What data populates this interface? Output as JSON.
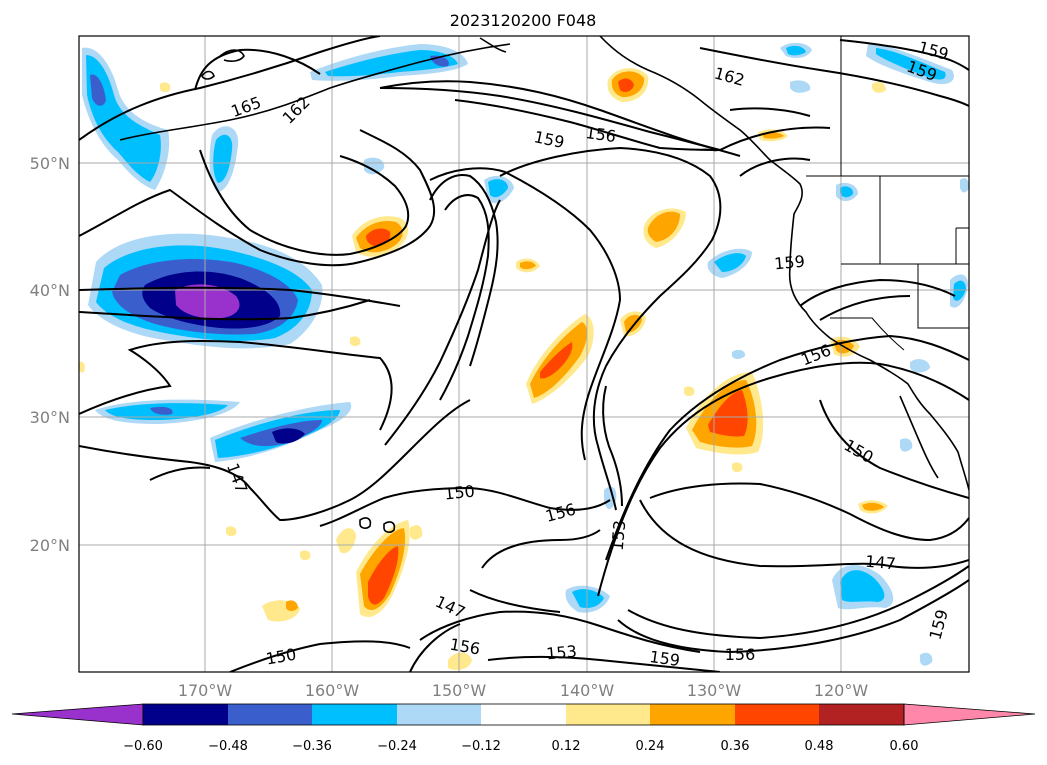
{
  "title": "2023120200 F048",
  "lat_labels": [
    "50°N",
    "40°N",
    "30°N",
    "20°N"
  ],
  "lon_labels": [
    "170°W",
    "160°W",
    "150°W",
    "140°W",
    "130°W",
    "120°W"
  ],
  "contour_labels": [
    "165",
    "162",
    "159",
    "156",
    "159",
    "162",
    "159",
    "159",
    "156",
    "150",
    "147",
    "150",
    "156",
    "153",
    "147",
    "156",
    "153",
    "159",
    "156",
    "147",
    "159",
    "150"
  ],
  "colorbar": {
    "tick_labels": [
      "−0.60",
      "−0.48",
      "−0.36",
      "−0.24",
      "−0.12",
      "0.12",
      "0.24",
      "0.36",
      "0.48",
      "0.60"
    ],
    "colors": [
      "#9932cc",
      "#00008b",
      "#3a5fcd",
      "#00bfff",
      "#add8f6",
      "#ffffff",
      "#ffe98c",
      "#ffa500",
      "#ff4500",
      "#b22222",
      "#ff88aa"
    ]
  }
}
